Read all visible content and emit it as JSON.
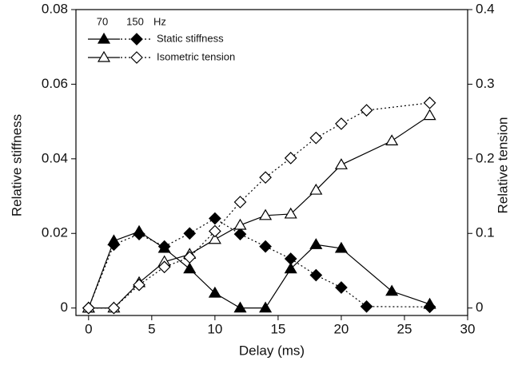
{
  "chart_data": {
    "type": "line",
    "x_label": "Delay (ms)",
    "y_label": "Relative stiffness",
    "y2_label": "Relative tension",
    "xlim": [
      -1,
      30
    ],
    "xticks": [
      0,
      5,
      10,
      15,
      20,
      25,
      30
    ],
    "ylim": [
      -0.002,
      0.08
    ],
    "yticks": [
      0,
      0.02,
      0.04,
      0.06,
      0.08
    ],
    "y2lim": [
      -0.01,
      0.4
    ],
    "y2ticks": [
      0,
      0.1,
      0.2,
      0.3,
      0.4
    ],
    "legend": {
      "columns": [
        "70",
        "150"
      ],
      "unit": "Hz",
      "rows": [
        "Static stiffness",
        "Isometric tension"
      ]
    },
    "series": [
      {
        "color": "#000000",
        "marker": "triangle",
        "filled": true,
        "line": "solid",
        "axis": "y",
        "x": [
          0,
          2,
          4,
          6,
          8,
          10,
          12,
          14,
          16,
          18,
          20,
          24,
          27
        ],
        "values": [
          0,
          0.018,
          0.0205,
          0.016,
          0.0105,
          0.004,
          0,
          0,
          0.0105,
          0.017,
          0.016,
          0.0045,
          0.001
        ]
      },
      {
        "color": "#000000",
        "marker": "diamond",
        "filled": true,
        "line": "dotted",
        "axis": "y",
        "x": [
          0,
          2,
          4,
          6,
          8,
          10,
          12,
          14,
          16,
          18,
          20,
          22,
          27
        ],
        "values": [
          0,
          0.017,
          0.0198,
          0.0165,
          0.02,
          0.024,
          0.0198,
          0.0165,
          0.0132,
          0.0088,
          0.0055,
          0.0004,
          0.0003
        ]
      },
      {
        "color": "#000000",
        "marker": "triangle",
        "filled": false,
        "line": "solid",
        "axis": "y2",
        "x": [
          0,
          2,
          4,
          6,
          8,
          10,
          12,
          14,
          16,
          18,
          20,
          24,
          27
        ],
        "values": [
          0,
          0,
          0.034,
          0.062,
          0.072,
          0.092,
          0.111,
          0.124,
          0.126,
          0.158,
          0.192,
          0.224,
          0.258
        ]
      },
      {
        "color": "#000000",
        "marker": "diamond",
        "filled": false,
        "line": "dotted",
        "axis": "y2",
        "x": [
          0,
          2,
          4,
          6,
          8,
          10,
          12,
          14,
          16,
          18,
          20,
          22,
          27
        ],
        "values": [
          0,
          0,
          0.031,
          0.055,
          0.068,
          0.103,
          0.142,
          0.175,
          0.201,
          0.228,
          0.247,
          0.265,
          0.275
        ]
      }
    ]
  }
}
